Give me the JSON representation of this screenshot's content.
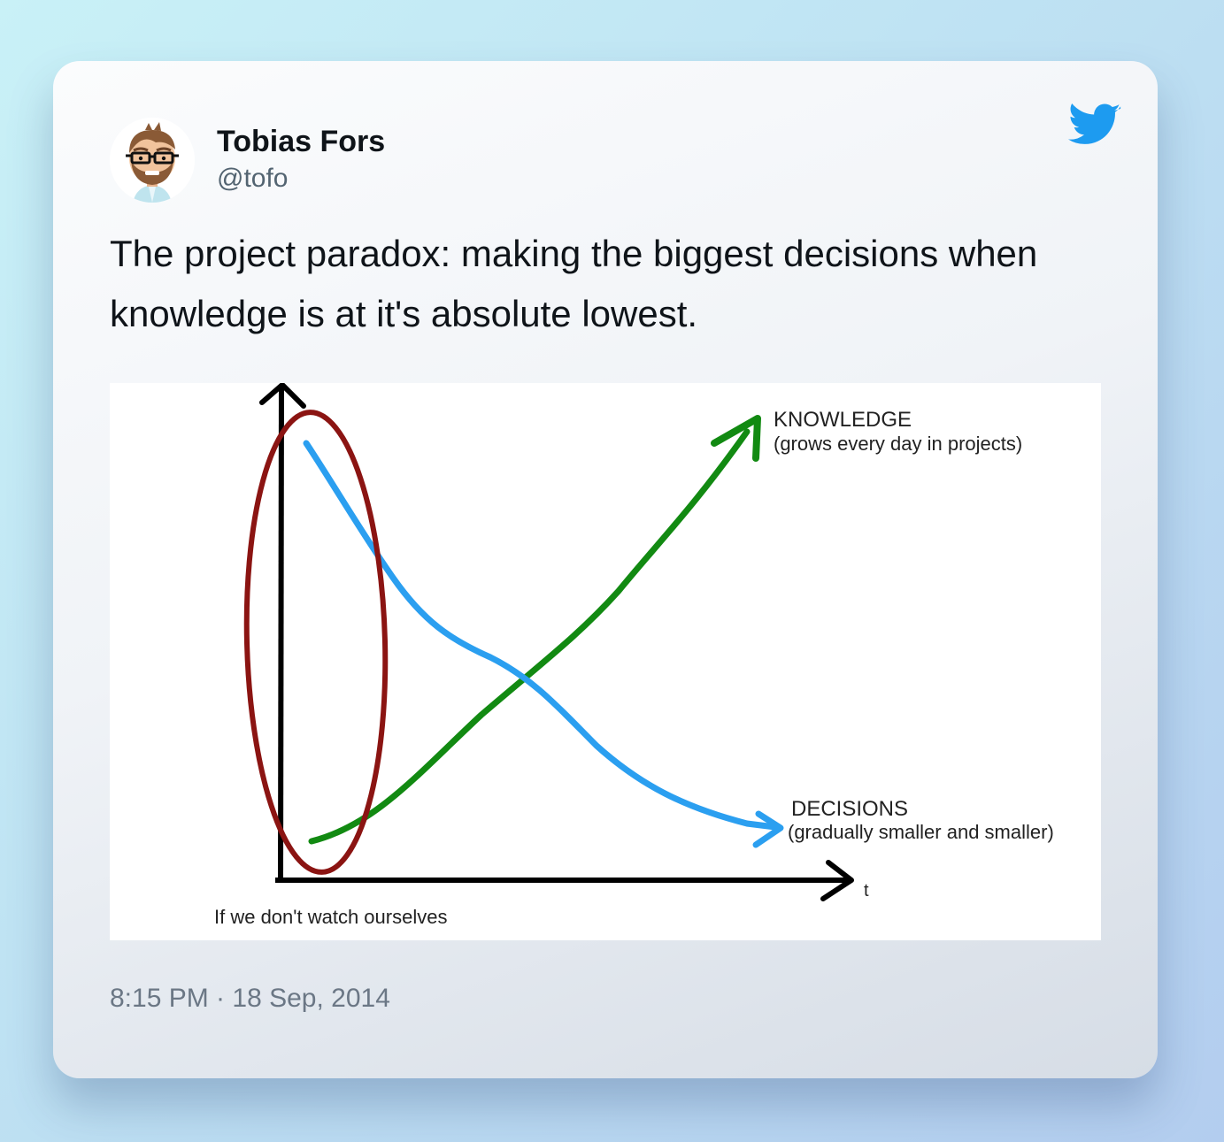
{
  "tweet": {
    "author_name": "Tobias Fors",
    "author_handle": "@tofo",
    "text": "The project paradox: making the biggest decisions when knowledge is at it's absolute lowest.",
    "timestamp": "8:15 PM · 18 Sep, 2014",
    "brand_color": "#1d9bf0",
    "avatar_icon": "cartoon-avatar-icon",
    "logo_icon": "twitter-bird-icon"
  },
  "image": {
    "knowledge_label": "KNOWLEDGE",
    "knowledge_caption": "(grows every day in projects)",
    "decisions_label": "DECISIONS",
    "decisions_caption": "(gradually smaller and smaller)",
    "axis_t_label": "t",
    "bottom_note": "If we don't watch ourselves",
    "colors": {
      "knowledge": "#128a12",
      "decisions": "#2b9ff0",
      "ellipse": "#8b1412",
      "axes": "#000000"
    }
  }
}
